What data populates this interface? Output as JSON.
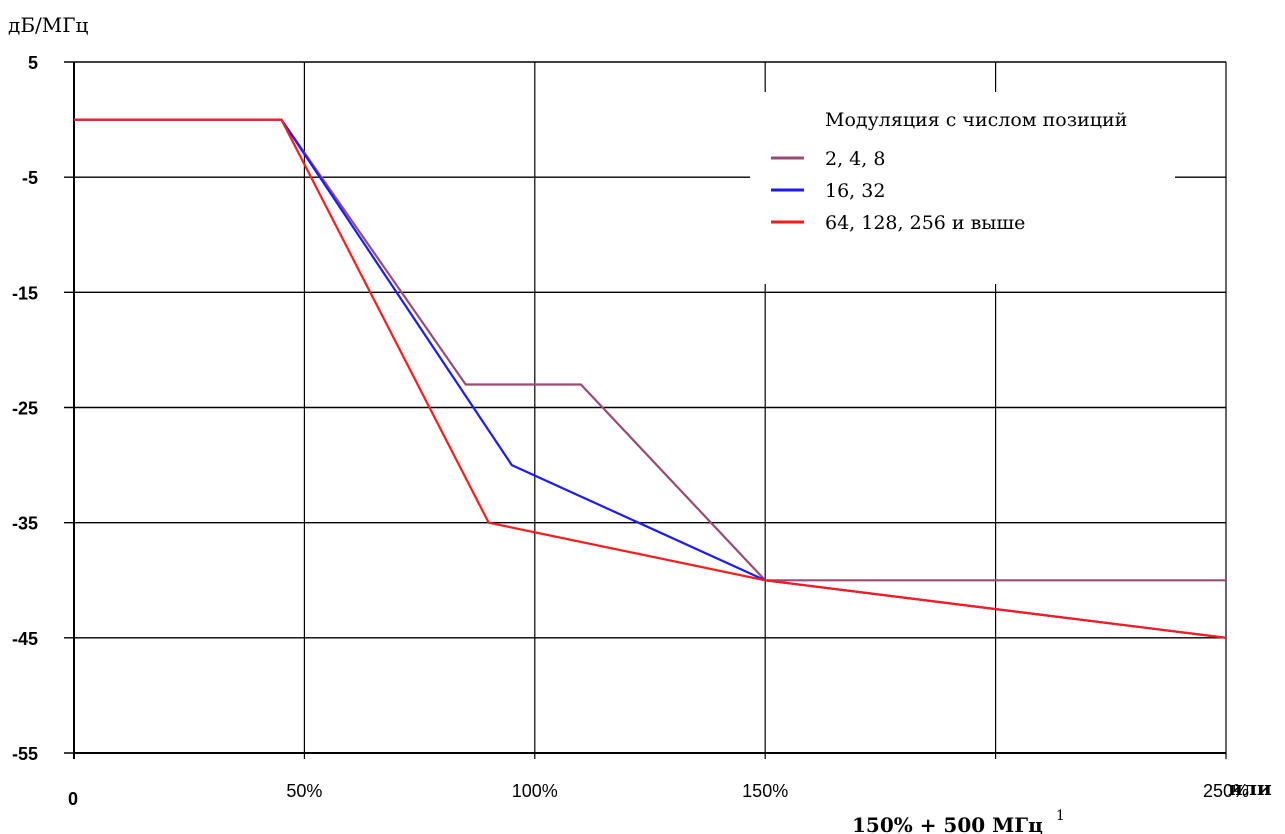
{
  "chart_data": {
    "type": "line",
    "ylabel": "дБ/МГц",
    "ylim": [
      -55,
      5
    ],
    "yticks": [
      5,
      -5,
      -15,
      -25,
      -35,
      -45,
      -55
    ],
    "xlim": [
      0,
      250
    ],
    "x_gridlines": [
      50,
      100,
      150,
      200,
      250
    ],
    "xtick_labels": [
      {
        "x": 0,
        "label": "0"
      },
      {
        "x": 50,
        "label": "50%"
      },
      {
        "x": 100,
        "label": "100%"
      },
      {
        "x": 150,
        "label": "150%"
      },
      {
        "x": 250,
        "label": "250%"
      }
    ],
    "x_extra_label_or": "или",
    "x_extra_label_main": "150% + 500 МГц",
    "x_extra_label_sup": "1",
    "grid": true,
    "legend": {
      "title": "Модуляция с числом позиций",
      "position": "top-right"
    },
    "series": [
      {
        "name": "2, 4, 8",
        "color": "#9b4a74",
        "points": [
          [
            0,
            0
          ],
          [
            45,
            0
          ],
          [
            85,
            -23
          ],
          [
            110,
            -23
          ],
          [
            150,
            -40
          ],
          [
            250,
            -40
          ]
        ]
      },
      {
        "name": "16, 32",
        "color": "#1a1aff",
        "points": [
          [
            0,
            0
          ],
          [
            45,
            0
          ],
          [
            95,
            -30
          ],
          [
            150,
            -40
          ],
          [
            250,
            -45
          ]
        ]
      },
      {
        "name": "64, 128, 256 и выше",
        "color": "#ff1a1a",
        "points": [
          [
            0,
            0
          ],
          [
            45,
            0
          ],
          [
            90,
            -35
          ],
          [
            150,
            -40
          ],
          [
            250,
            -45
          ]
        ]
      }
    ]
  }
}
